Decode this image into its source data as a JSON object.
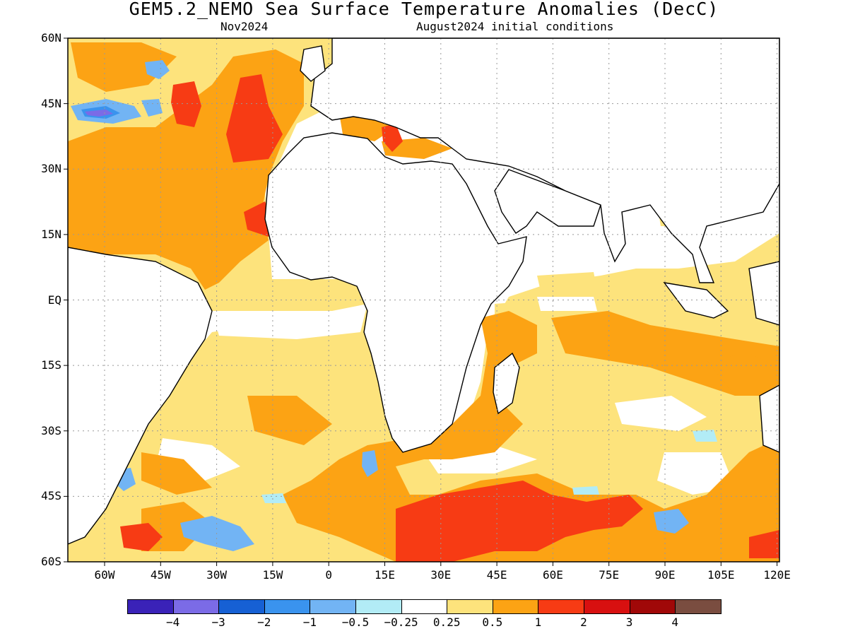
{
  "title": "GEM5.2_NEMO Sea Surface Temperature Anomalies (DecC)",
  "subtitle_left": "Nov2024",
  "subtitle_right": "August2024 initial conditions",
  "lat_labels": [
    "60N",
    "45N",
    "30N",
    "15N",
    "EQ",
    "15S",
    "30S",
    "45S",
    "60S"
  ],
  "lon_labels": [
    "60W",
    "45W",
    "30W",
    "15W",
    "0",
    "15E",
    "30E",
    "45E",
    "60E",
    "75E",
    "90E",
    "105E",
    "120E"
  ],
  "colorbar": {
    "colors": [
      "#3a22b8",
      "#7b6be6",
      "#1660d4",
      "#3a93ee",
      "#72b4f4",
      "#b2ecf6",
      "#ffffff",
      "#fde37c",
      "#fca314",
      "#f73b14",
      "#d81010",
      "#a00808",
      "#7a4d40"
    ],
    "labels": [
      "−4",
      "−3",
      "−2",
      "−1",
      "−0.5",
      "−0.25",
      "0.25",
      "0.5",
      "1",
      "2",
      "3",
      "4"
    ]
  }
}
